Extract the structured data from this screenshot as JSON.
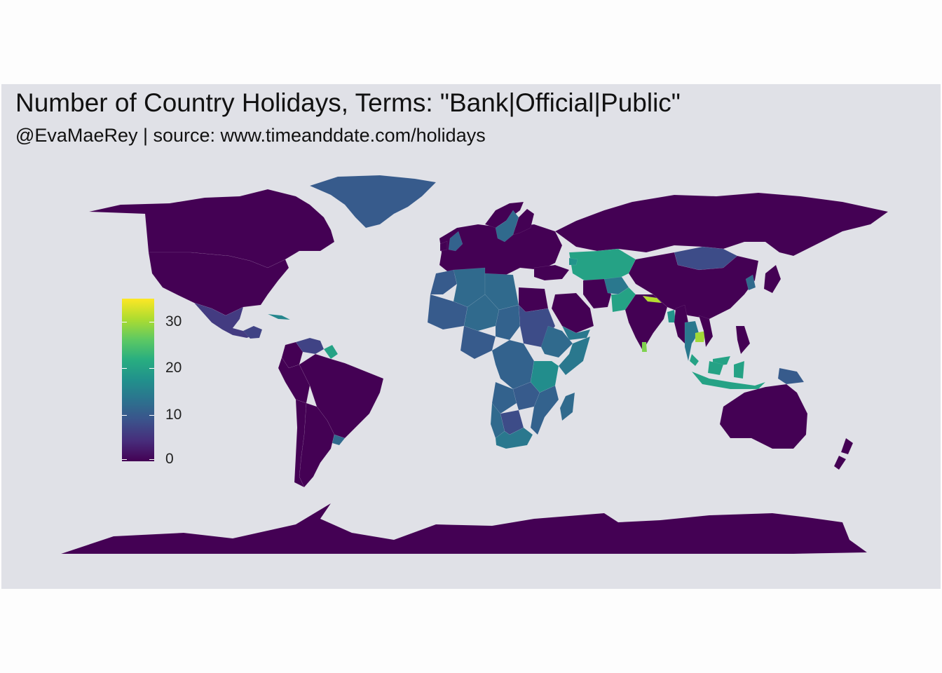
{
  "header": {
    "title": "Number of Country Holidays, Terms: \"Bank|Official|Public\"",
    "subtitle": "@EvaMaeRey | source: www.timeanddate.com/holidays"
  },
  "map": {
    "projection": "equirectangular world choropleth",
    "fill_variable": "number of country holidays",
    "palette": "viridis",
    "background_color": "#e0e1e7",
    "regions": [
      {
        "name": "Antarctica",
        "value": 0
      },
      {
        "name": "Canada",
        "value": 0
      },
      {
        "name": "United States",
        "value": 0
      },
      {
        "name": "Greenland",
        "value": 10
      },
      {
        "name": "Mexico",
        "value": 6
      },
      {
        "name": "Guatemala",
        "value": 7
      },
      {
        "name": "Cuba",
        "value": 16
      },
      {
        "name": "Venezuela",
        "value": 7
      },
      {
        "name": "Guyana",
        "value": 20
      },
      {
        "name": "Colombia",
        "value": 0
      },
      {
        "name": "Brazil",
        "value": 0
      },
      {
        "name": "Peru",
        "value": 0
      },
      {
        "name": "Argentina",
        "value": 0
      },
      {
        "name": "Chile",
        "value": 0
      },
      {
        "name": "Uruguay",
        "value": 12
      },
      {
        "name": "Europe",
        "value": 0
      },
      {
        "name": "Norway",
        "value": 0
      },
      {
        "name": "Sweden",
        "value": 12
      },
      {
        "name": "Finland",
        "value": 0
      },
      {
        "name": "United Kingdom",
        "value": 11
      },
      {
        "name": "Ireland",
        "value": 0
      },
      {
        "name": "Russia",
        "value": 0
      },
      {
        "name": "Kazakhstan",
        "value": 20
      },
      {
        "name": "Mongolia",
        "value": 8
      },
      {
        "name": "China",
        "value": 0
      },
      {
        "name": "Japan",
        "value": 0
      },
      {
        "name": "Korea",
        "value": 12
      },
      {
        "name": "Turkey",
        "value": 0
      },
      {
        "name": "Georgia",
        "value": 18
      },
      {
        "name": "Iran",
        "value": 0
      },
      {
        "name": "Afghanistan",
        "value": 14
      },
      {
        "name": "Pakistan",
        "value": 20
      },
      {
        "name": "Saudi Arabia",
        "value": 0
      },
      {
        "name": "Yemen",
        "value": 14
      },
      {
        "name": "India",
        "value": 0
      },
      {
        "name": "Nepal",
        "value": 31
      },
      {
        "name": "Bangladesh",
        "value": 18
      },
      {
        "name": "Myanmar",
        "value": 0
      },
      {
        "name": "Thailand",
        "value": 14
      },
      {
        "name": "Cambodia",
        "value": 30
      },
      {
        "name": "Vietnam",
        "value": 0
      },
      {
        "name": "Malaysia",
        "value": 20
      },
      {
        "name": "Indonesia",
        "value": 20
      },
      {
        "name": "Papua New Guinea",
        "value": 10
      },
      {
        "name": "Philippines",
        "value": 0
      },
      {
        "name": "Sri Lanka",
        "value": 28
      },
      {
        "name": "Australia",
        "value": 0
      },
      {
        "name": "New Zealand",
        "value": 0
      },
      {
        "name": "Morocco",
        "value": 10
      },
      {
        "name": "Algeria",
        "value": 12
      },
      {
        "name": "Libya",
        "value": 12
      },
      {
        "name": "Egypt",
        "value": 0
      },
      {
        "name": "Mali",
        "value": 10
      },
      {
        "name": "Niger",
        "value": 12
      },
      {
        "name": "Chad",
        "value": 11
      },
      {
        "name": "Sudan",
        "value": 8
      },
      {
        "name": "Ethiopia",
        "value": 12
      },
      {
        "name": "Somalia",
        "value": 14
      },
      {
        "name": "Nigeria",
        "value": 10
      },
      {
        "name": "DR Congo",
        "value": 11
      },
      {
        "name": "Tanzania",
        "value": 17
      },
      {
        "name": "Angola",
        "value": 11
      },
      {
        "name": "Zambia",
        "value": 10
      },
      {
        "name": "Namibia",
        "value": 12
      },
      {
        "name": "Botswana",
        "value": 8
      },
      {
        "name": "Mozambique",
        "value": 11
      },
      {
        "name": "South Africa",
        "value": 14
      },
      {
        "name": "Madagascar",
        "value": 12
      }
    ]
  },
  "legend": {
    "min": 0,
    "max": 35,
    "ticks": [
      "0",
      "10",
      "20",
      "30"
    ],
    "colors": [
      "#440154",
      "#472d7b",
      "#3b528b",
      "#2c728e",
      "#21918c",
      "#28ae80",
      "#5ec962",
      "#addc30",
      "#fde725"
    ]
  }
}
